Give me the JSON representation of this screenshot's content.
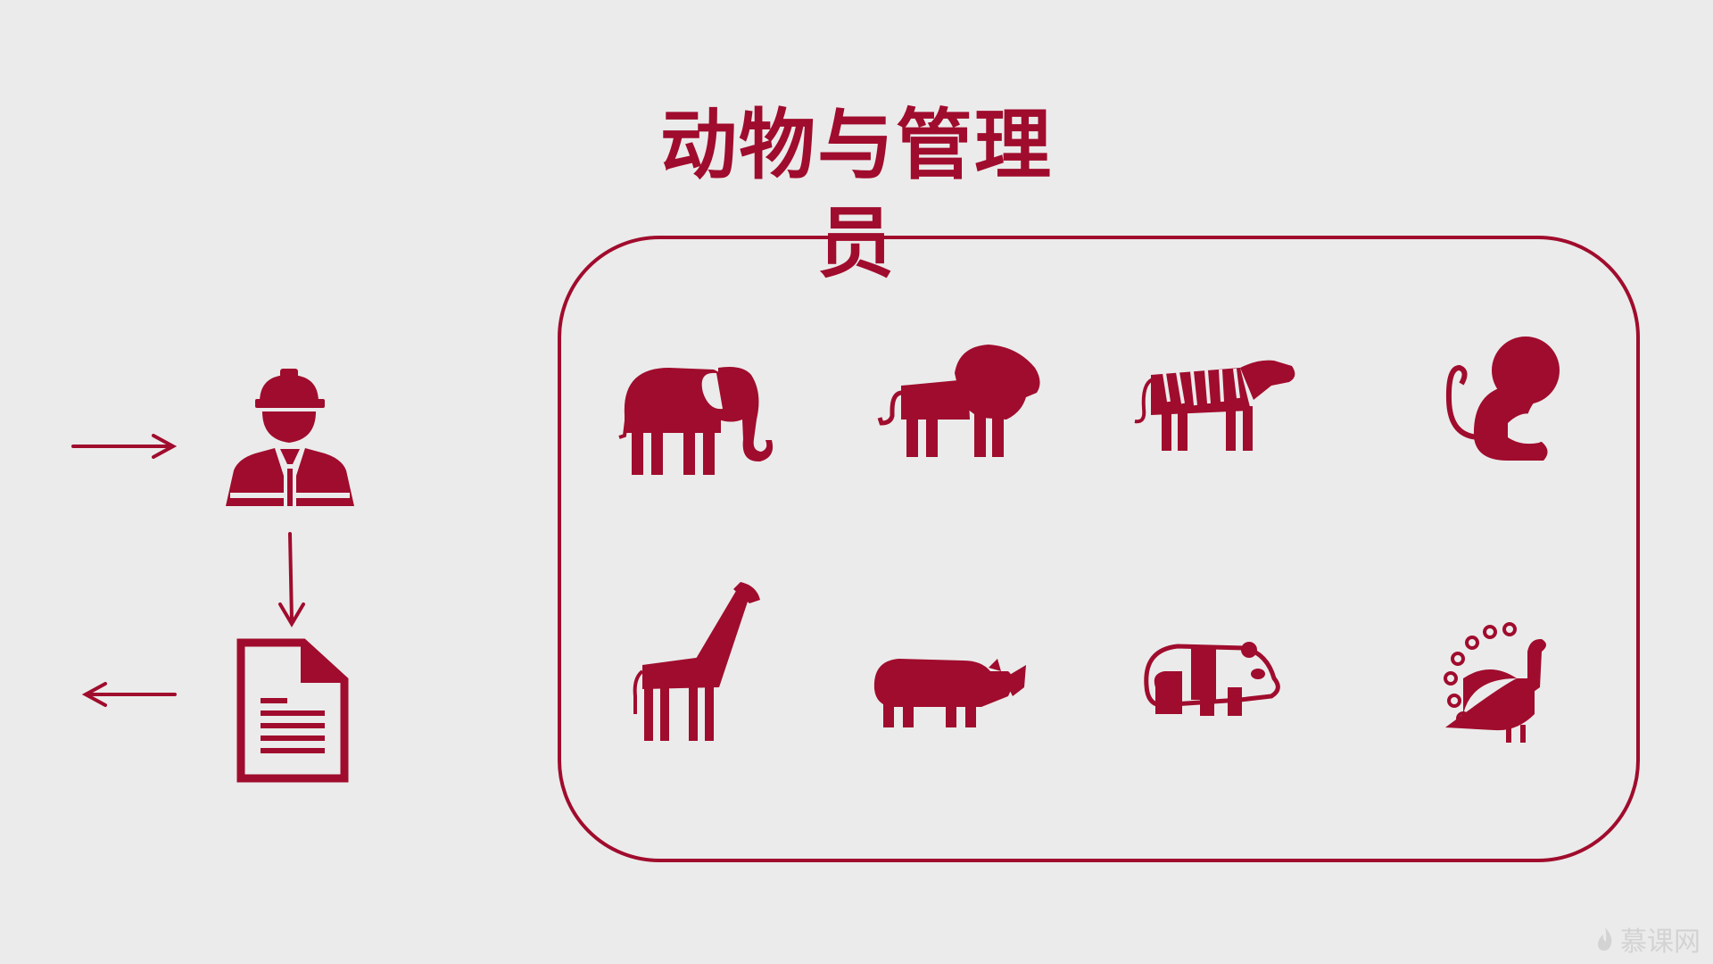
{
  "title": "动物与管理员",
  "colors": {
    "accent": "#a00c2d",
    "background": "#ebebeb",
    "watermark": "#d3d3d3"
  },
  "left_panel": {
    "keeper_icon": "worker-hardhat-icon",
    "document_icon": "document-icon",
    "input_arrow": "arrow-right-icon",
    "output_arrow": "arrow-left-icon",
    "flow_arrow": "arrow-down-icon"
  },
  "animals": [
    {
      "name": "elephant",
      "icon": "elephant-icon"
    },
    {
      "name": "lion",
      "icon": "lion-icon"
    },
    {
      "name": "tiger",
      "icon": "tiger-icon"
    },
    {
      "name": "monkey",
      "icon": "monkey-icon"
    },
    {
      "name": "giraffe",
      "icon": "giraffe-icon"
    },
    {
      "name": "rhino",
      "icon": "rhino-icon"
    },
    {
      "name": "panda",
      "icon": "panda-icon"
    },
    {
      "name": "peacock",
      "icon": "peacock-icon"
    }
  ],
  "watermark": {
    "text": "慕课网",
    "icon": "flame-logo-icon"
  }
}
